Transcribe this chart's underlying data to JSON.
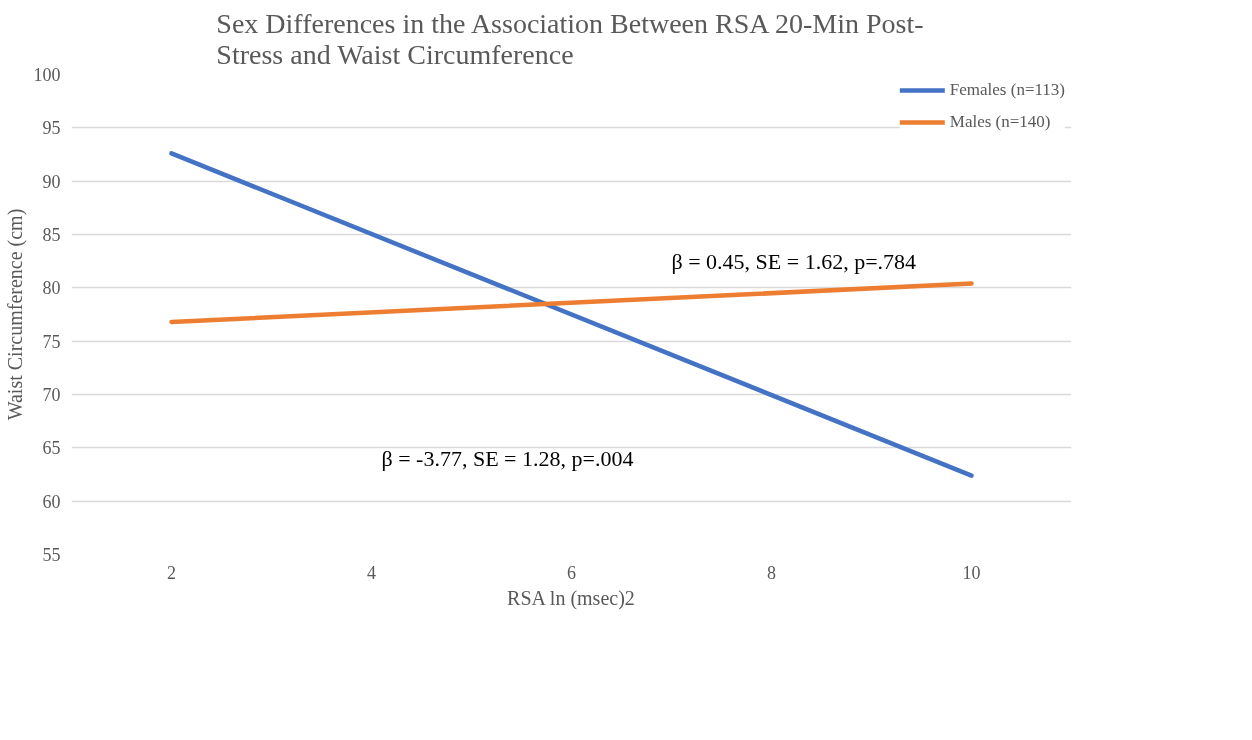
{
  "chart_data": {
    "type": "line",
    "title": "Sex Differences in the Association Between RSA 20-Min Post-Stress and Waist Circumference",
    "xlabel": "RSA ln (msec)2",
    "ylabel": "Waist Circumference (cm)",
    "x": [
      2,
      10
    ],
    "xlim": [
      1,
      11
    ],
    "xticks": [
      2,
      4,
      6,
      8,
      10
    ],
    "ylim": [
      55,
      100
    ],
    "yticks": [
      55,
      60,
      65,
      70,
      75,
      80,
      85,
      90,
      95,
      100
    ],
    "series": [
      {
        "name": "Females (n=113)",
        "color": "#4472c4",
        "values": [
          92.6,
          62.4
        ]
      },
      {
        "name": "Males (n=140)",
        "color": "#ed7d31",
        "values": [
          76.8,
          80.4
        ]
      }
    ],
    "annotations": [
      "β = 0.45, SE = 1.62, p=.784",
      "β = -3.77, SE = 1.28, p=.004"
    ],
    "grid": "y",
    "legend": "top right",
    "marker": "none",
    "line_style": "solid"
  }
}
